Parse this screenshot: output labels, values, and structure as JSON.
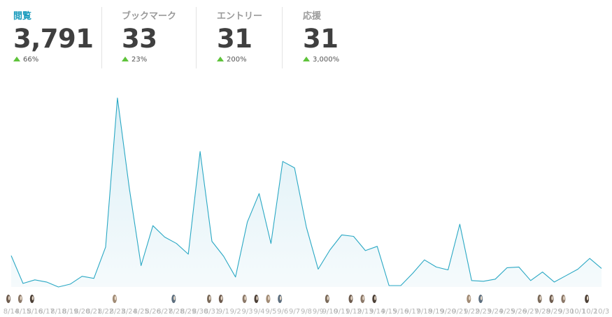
{
  "stats": [
    {
      "label": "閲覧",
      "value": "3,791",
      "change": "66%",
      "active": true
    },
    {
      "label": "ブックマーク",
      "value": "33",
      "change": "23%",
      "active": false
    },
    {
      "label": "エントリー",
      "value": "31",
      "change": "200%",
      "active": false
    },
    {
      "label": "応援",
      "value": "31",
      "change": "3,000%",
      "active": false
    }
  ],
  "colors": {
    "accent": "#1a9bbd",
    "line": "#2aa8c4",
    "area": "#e6f4f8",
    "up": "#5ec33a"
  },
  "chart_data": {
    "type": "area",
    "title": "",
    "xlabel": "",
    "ylabel": "",
    "x": [
      "8/14",
      "8/15",
      "8/16",
      "8/17",
      "8/18",
      "8/19",
      "8/20",
      "8/21",
      "8/22",
      "8/23",
      "8/24",
      "8/25",
      "8/26",
      "8/27",
      "8/28",
      "8/29",
      "8/30",
      "8/31",
      "9/1",
      "9/2",
      "9/3",
      "9/4",
      "9/5",
      "9/6",
      "9/7",
      "9/8",
      "9/9",
      "9/10",
      "9/11",
      "9/12",
      "9/13",
      "9/14",
      "9/15",
      "9/16",
      "9/17",
      "9/18",
      "9/19",
      "9/20",
      "9/21",
      "9/22",
      "9/23",
      "9/24",
      "9/25",
      "9/26",
      "9/27",
      "9/28",
      "9/29",
      "9/30",
      "10/1",
      "10/2",
      "10/3"
    ],
    "series": [
      {
        "values": [
          44,
          5,
          10,
          7,
          0,
          4,
          15,
          12,
          56,
          265,
          139,
          30,
          86,
          70,
          61,
          46,
          190,
          64,
          43,
          14,
          91,
          131,
          61,
          176,
          167,
          84,
          25,
          52,
          73,
          71,
          51,
          57,
          2,
          2,
          19,
          38,
          28,
          24,
          88,
          9,
          8,
          11,
          27,
          28,
          9,
          21,
          7,
          16,
          25,
          40,
          26
        ]
      }
    ],
    "ylim": [
      0,
      280
    ],
    "grid": false,
    "legend": "none",
    "avatar_marker_dates": [
      "8/14",
      "8/15",
      "8/16",
      "8/23",
      "8/28",
      "8/31",
      "9/1",
      "9/3",
      "9/4",
      "9/5",
      "9/6",
      "9/10",
      "9/12",
      "9/13",
      "9/14",
      "9/22",
      "9/23",
      "9/28",
      "9/29",
      "9/30",
      "10/2"
    ]
  }
}
